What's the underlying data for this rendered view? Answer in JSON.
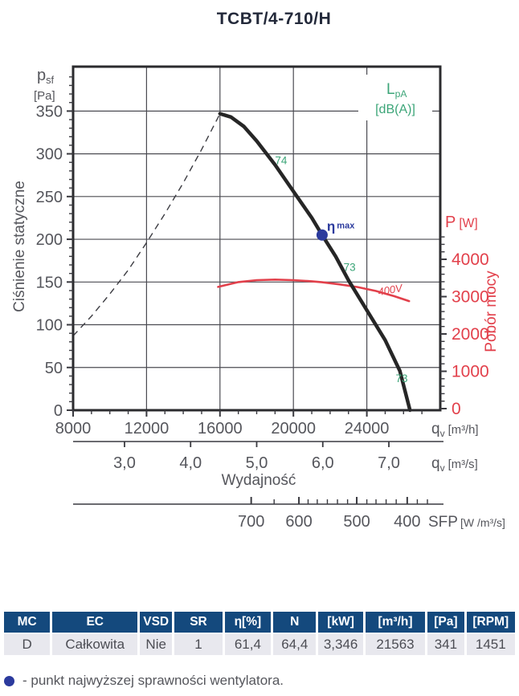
{
  "page_title": "TCBT/4-710/H",
  "chart_data": {
    "type": "line",
    "x_axis_m3h": {
      "title_sym": "q",
      "title_sub": "v",
      "title_unit": "[m³/h]",
      "min": 8000,
      "max": 28000,
      "minor_step": 1000,
      "major_ticks": [
        8000,
        12000,
        16000,
        20000,
        24000
      ]
    },
    "y_axis_pressure": {
      "title_sym": "p",
      "title_sub": "sf",
      "title_unit": "[Pa]",
      "axis_title": "Ciśnienie statyczne",
      "min": 0,
      "max": 402,
      "minor_step": 10,
      "major_ticks": [
        0,
        50,
        100,
        150,
        200,
        250,
        300,
        350
      ]
    },
    "y_axis_power": {
      "title_sym": "P",
      "title_unit": "[W]",
      "axis_title": "Pobór mocy",
      "color": "#e2404b",
      "major_ticks": [
        0,
        1000,
        2000,
        3000,
        4000
      ],
      "minor_step": 200,
      "tick_top": 4600
    },
    "x_axis_m3s": {
      "title_sym": "q",
      "title_sub": "v",
      "title_unit": "[m³/s]",
      "axis_title": "Wydajność",
      "ticks": [
        {
          "label": "3,0",
          "m3h": 10800
        },
        {
          "label": "4,0",
          "m3h": 14400
        },
        {
          "label": "5,0",
          "m3h": 18000
        },
        {
          "label": "6,0",
          "m3h": 21600
        },
        {
          "label": "7,0",
          "m3h": 25200
        }
      ]
    },
    "x_axis_sfp": {
      "title": "SFP",
      "title_unit": "[W /m³/s]",
      "ticks": [
        {
          "label": "700",
          "m3h": 17700,
          "major": true
        },
        {
          "m3h": 18950
        },
        {
          "label": "600",
          "m3h": 20300,
          "major": true
        },
        {
          "m3h": 20800
        },
        {
          "m3h": 21300
        },
        {
          "m3h": 21850
        },
        {
          "m3h": 22400
        },
        {
          "m3h": 22950
        },
        {
          "label": "500",
          "m3h": 23450,
          "major": true
        },
        {
          "m3h": 24000
        },
        {
          "m3h": 24500
        },
        {
          "m3h": 25050
        },
        {
          "m3h": 25600
        },
        {
          "label": "400",
          "m3h": 26200,
          "major": true
        },
        {
          "m3h": 26750
        },
        {
          "m3h": 27300
        }
      ]
    },
    "series": {
      "pressure_curve": {
        "name": "static-pressure-curve",
        "color": "#262626",
        "width": 4.5,
        "points": [
          [
            16000,
            347
          ],
          [
            16600,
            343
          ],
          [
            17300,
            332
          ],
          [
            18000,
            315
          ],
          [
            19000,
            287
          ],
          [
            20000,
            256
          ],
          [
            21000,
            225
          ],
          [
            21563,
            205
          ],
          [
            22300,
            180
          ],
          [
            23000,
            152
          ],
          [
            24000,
            117
          ],
          [
            25000,
            82
          ],
          [
            25800,
            46
          ],
          [
            26350,
            0
          ]
        ]
      },
      "stall_line": {
        "name": "operating-limit-line",
        "color": "#3c3c42",
        "width": 1.4,
        "dash": "8 6",
        "points": [
          [
            8000,
            87
          ],
          [
            9000,
            110
          ],
          [
            10000,
            136
          ],
          [
            11000,
            164
          ],
          [
            12000,
            196
          ],
          [
            13000,
            230
          ],
          [
            14000,
            266
          ],
          [
            15000,
            305
          ],
          [
            16000,
            347
          ]
        ]
      },
      "power_curve": {
        "name": "power-curve",
        "color": "#e2404b",
        "width": 2.6,
        "label": "400V",
        "label_m3h": 24650,
        "label_w": 3030,
        "label_rotation": -10,
        "points_w": [
          [
            15900,
            3260
          ],
          [
            17000,
            3390
          ],
          [
            18000,
            3440
          ],
          [
            19000,
            3455
          ],
          [
            20000,
            3440
          ],
          [
            21000,
            3410
          ],
          [
            21563,
            3385
          ],
          [
            22500,
            3330
          ],
          [
            23500,
            3255
          ],
          [
            24500,
            3150
          ],
          [
            25500,
            3010
          ],
          [
            26300,
            2880
          ]
        ]
      }
    },
    "noise": {
      "color": "#3ca578",
      "legend_sym": "L",
      "legend_sub": "pA",
      "legend_unit": "[dB(A)]",
      "labels": [
        {
          "text": "74",
          "m3h": 19330,
          "pa": 288
        },
        {
          "text": "73",
          "m3h": 23060,
          "pa": 163
        },
        {
          "text": "73",
          "m3h": 25900,
          "pa": 33
        }
      ]
    },
    "bep": {
      "color": "#2b3a9d",
      "m3h": 21563,
      "pa": 205,
      "label_sym": "η",
      "label_sub": "max"
    }
  },
  "table": {
    "header_bg": "#14497d",
    "row_bg": "#e8e8ee",
    "headers": [
      "MC",
      "EC",
      "VSD",
      "SR",
      "η[%]",
      "N",
      "[kW]",
      "[m³/h]",
      "[Pa]",
      "[RPM]"
    ],
    "rows": [
      [
        "D",
        "Całkowita",
        "Nie",
        "1",
        "61,4",
        "64,4",
        "3,346",
        "21563",
        "341",
        "1451"
      ]
    ]
  },
  "bep_note": {
    "text": "- punkt najwyższej sprawności wentylatora."
  }
}
